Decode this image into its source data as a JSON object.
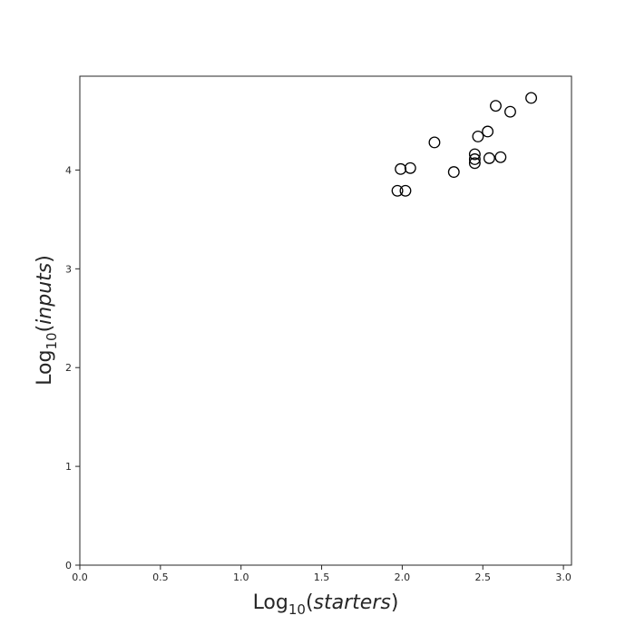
{
  "chart_data": {
    "type": "scatter",
    "title": "",
    "xlabel": {
      "prefix": "Log",
      "subscript": "10",
      "open": "(",
      "var": "starters",
      "close": ")"
    },
    "ylabel": {
      "prefix": "Log",
      "subscript": "10",
      "open": "(",
      "var": "inputs",
      "close": ")"
    },
    "xlim": [
      0.0,
      3.05
    ],
    "ylim": [
      0.0,
      4.95
    ],
    "xticks": [
      0.0,
      0.5,
      1.0,
      1.5,
      2.0,
      2.5,
      3.0
    ],
    "xtick_labels": [
      "0.0",
      "0.5",
      "1.0",
      "1.5",
      "2.0",
      "2.5",
      "3.0"
    ],
    "yticks": [
      0,
      1,
      2,
      3,
      4
    ],
    "ytick_labels": [
      "0",
      "1",
      "2",
      "3",
      "4"
    ],
    "grid": false,
    "marker": "open-circle",
    "points": [
      {
        "x": 1.97,
        "y": 3.79
      },
      {
        "x": 2.02,
        "y": 3.79
      },
      {
        "x": 1.99,
        "y": 4.01
      },
      {
        "x": 2.05,
        "y": 4.02
      },
      {
        "x": 2.2,
        "y": 4.28
      },
      {
        "x": 2.32,
        "y": 3.98
      },
      {
        "x": 2.45,
        "y": 4.16
      },
      {
        "x": 2.45,
        "y": 4.11
      },
      {
        "x": 2.45,
        "y": 4.07
      },
      {
        "x": 2.47,
        "y": 4.34
      },
      {
        "x": 2.53,
        "y": 4.39
      },
      {
        "x": 2.54,
        "y": 4.12
      },
      {
        "x": 2.58,
        "y": 4.65
      },
      {
        "x": 2.61,
        "y": 4.13
      },
      {
        "x": 2.67,
        "y": 4.59
      },
      {
        "x": 2.8,
        "y": 4.73
      }
    ]
  }
}
